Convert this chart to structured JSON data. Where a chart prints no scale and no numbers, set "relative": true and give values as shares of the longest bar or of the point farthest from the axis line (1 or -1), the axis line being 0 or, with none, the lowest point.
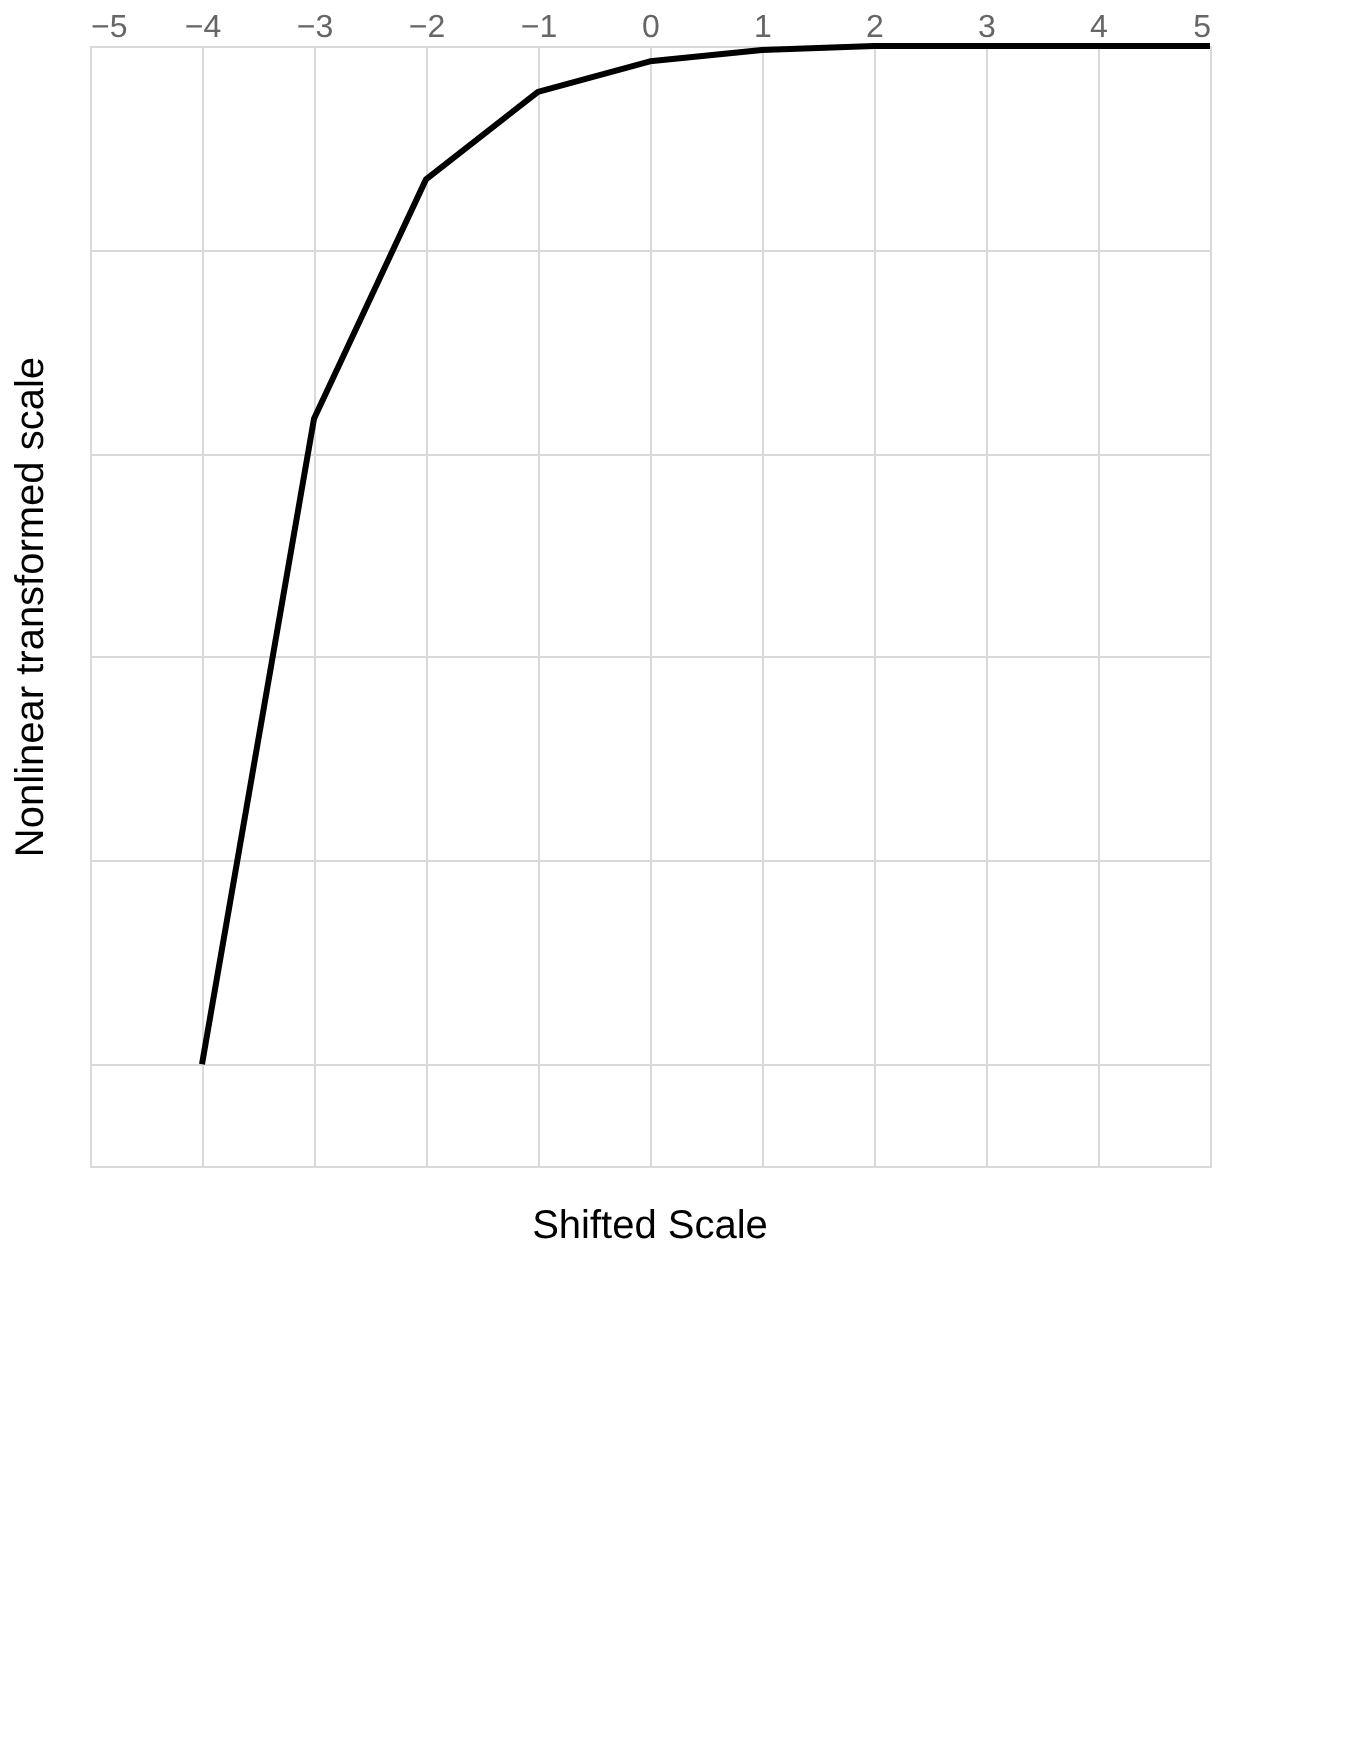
{
  "chart_data": {
    "type": "line",
    "xlabel": "Shifted Scale",
    "ylabel": "Nonlinear transformed scale",
    "relative": true,
    "x": [
      -4,
      -3,
      -2,
      -1,
      0,
      1,
      2,
      3,
      4,
      5
    ],
    "series": [
      {
        "color": "#000000",
        "values": [
          -1,
          -0.366,
          -0.131,
          -0.045,
          -0.015,
          -0.004,
          0,
          0,
          0,
          0
        ]
      }
    ],
    "xlim": [
      -5,
      5
    ],
    "xticks": [
      -5,
      -4,
      -3,
      -2,
      -1,
      0,
      1,
      2,
      3,
      4,
      5
    ],
    "grid": true,
    "marker": "none",
    "line_style": "solid",
    "tick_labels": "x"
  }
}
